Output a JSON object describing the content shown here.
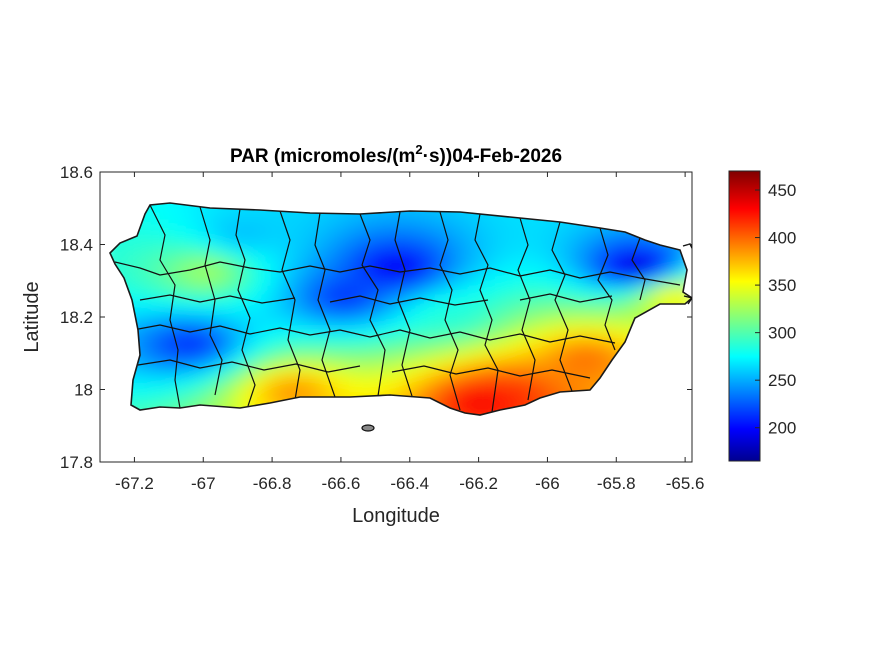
{
  "chart_data": {
    "type": "heatmap",
    "title_main": "PAR (micromoles/(m",
    "title_sup": "2",
    "title_rest": "·s))04-Feb-2026",
    "xlabel": "Longitude",
    "ylabel": "Latitude",
    "xlim": [
      -67.3,
      -65.58
    ],
    "ylim": [
      17.8,
      18.6
    ],
    "xticks": [
      -67.2,
      -67,
      -66.8,
      -66.6,
      -66.4,
      -66.2,
      -66,
      -65.8,
      -65.6
    ],
    "xtick_labels": [
      "-67.2",
      "-67",
      "-66.8",
      "-66.6",
      "-66.4",
      "-66.2",
      "-66",
      "-65.8",
      "-65.6"
    ],
    "yticks": [
      17.8,
      18,
      18.2,
      18.4,
      18.6
    ],
    "ytick_labels": [
      "17.8",
      "18",
      "18.2",
      "18.4",
      "18.6"
    ],
    "colorbar": {
      "colormap": "jet",
      "clim": [
        165,
        470
      ],
      "ticks": [
        200,
        250,
        300,
        350,
        400,
        450
      ],
      "tick_labels": [
        "200",
        "250",
        "300",
        "350",
        "400",
        "450"
      ]
    },
    "grid": false,
    "region": "Puerto Rico",
    "field_description_points": [
      {
        "lon": -66.45,
        "lat": 18.33,
        "value": 195
      },
      {
        "lon": -66.6,
        "lat": 18.25,
        "value": 215
      },
      {
        "lon": -65.75,
        "lat": 18.33,
        "value": 185
      },
      {
        "lon": -67.05,
        "lat": 18.12,
        "value": 215
      },
      {
        "lon": -66.2,
        "lat": 17.96,
        "value": 440
      },
      {
        "lon": -66.12,
        "lat": 17.98,
        "value": 420
      },
      {
        "lon": -65.9,
        "lat": 18.08,
        "value": 400
      },
      {
        "lon": -66.75,
        "lat": 17.99,
        "value": 390
      },
      {
        "lon": -67.0,
        "lat": 18.32,
        "value": 330
      },
      {
        "lon": -65.65,
        "lat": 18.25,
        "value": 360
      },
      {
        "lon": -66.9,
        "lat": 18.42,
        "value": 260
      },
      {
        "lon": -66.3,
        "lat": 18.2,
        "value": 290
      }
    ]
  }
}
